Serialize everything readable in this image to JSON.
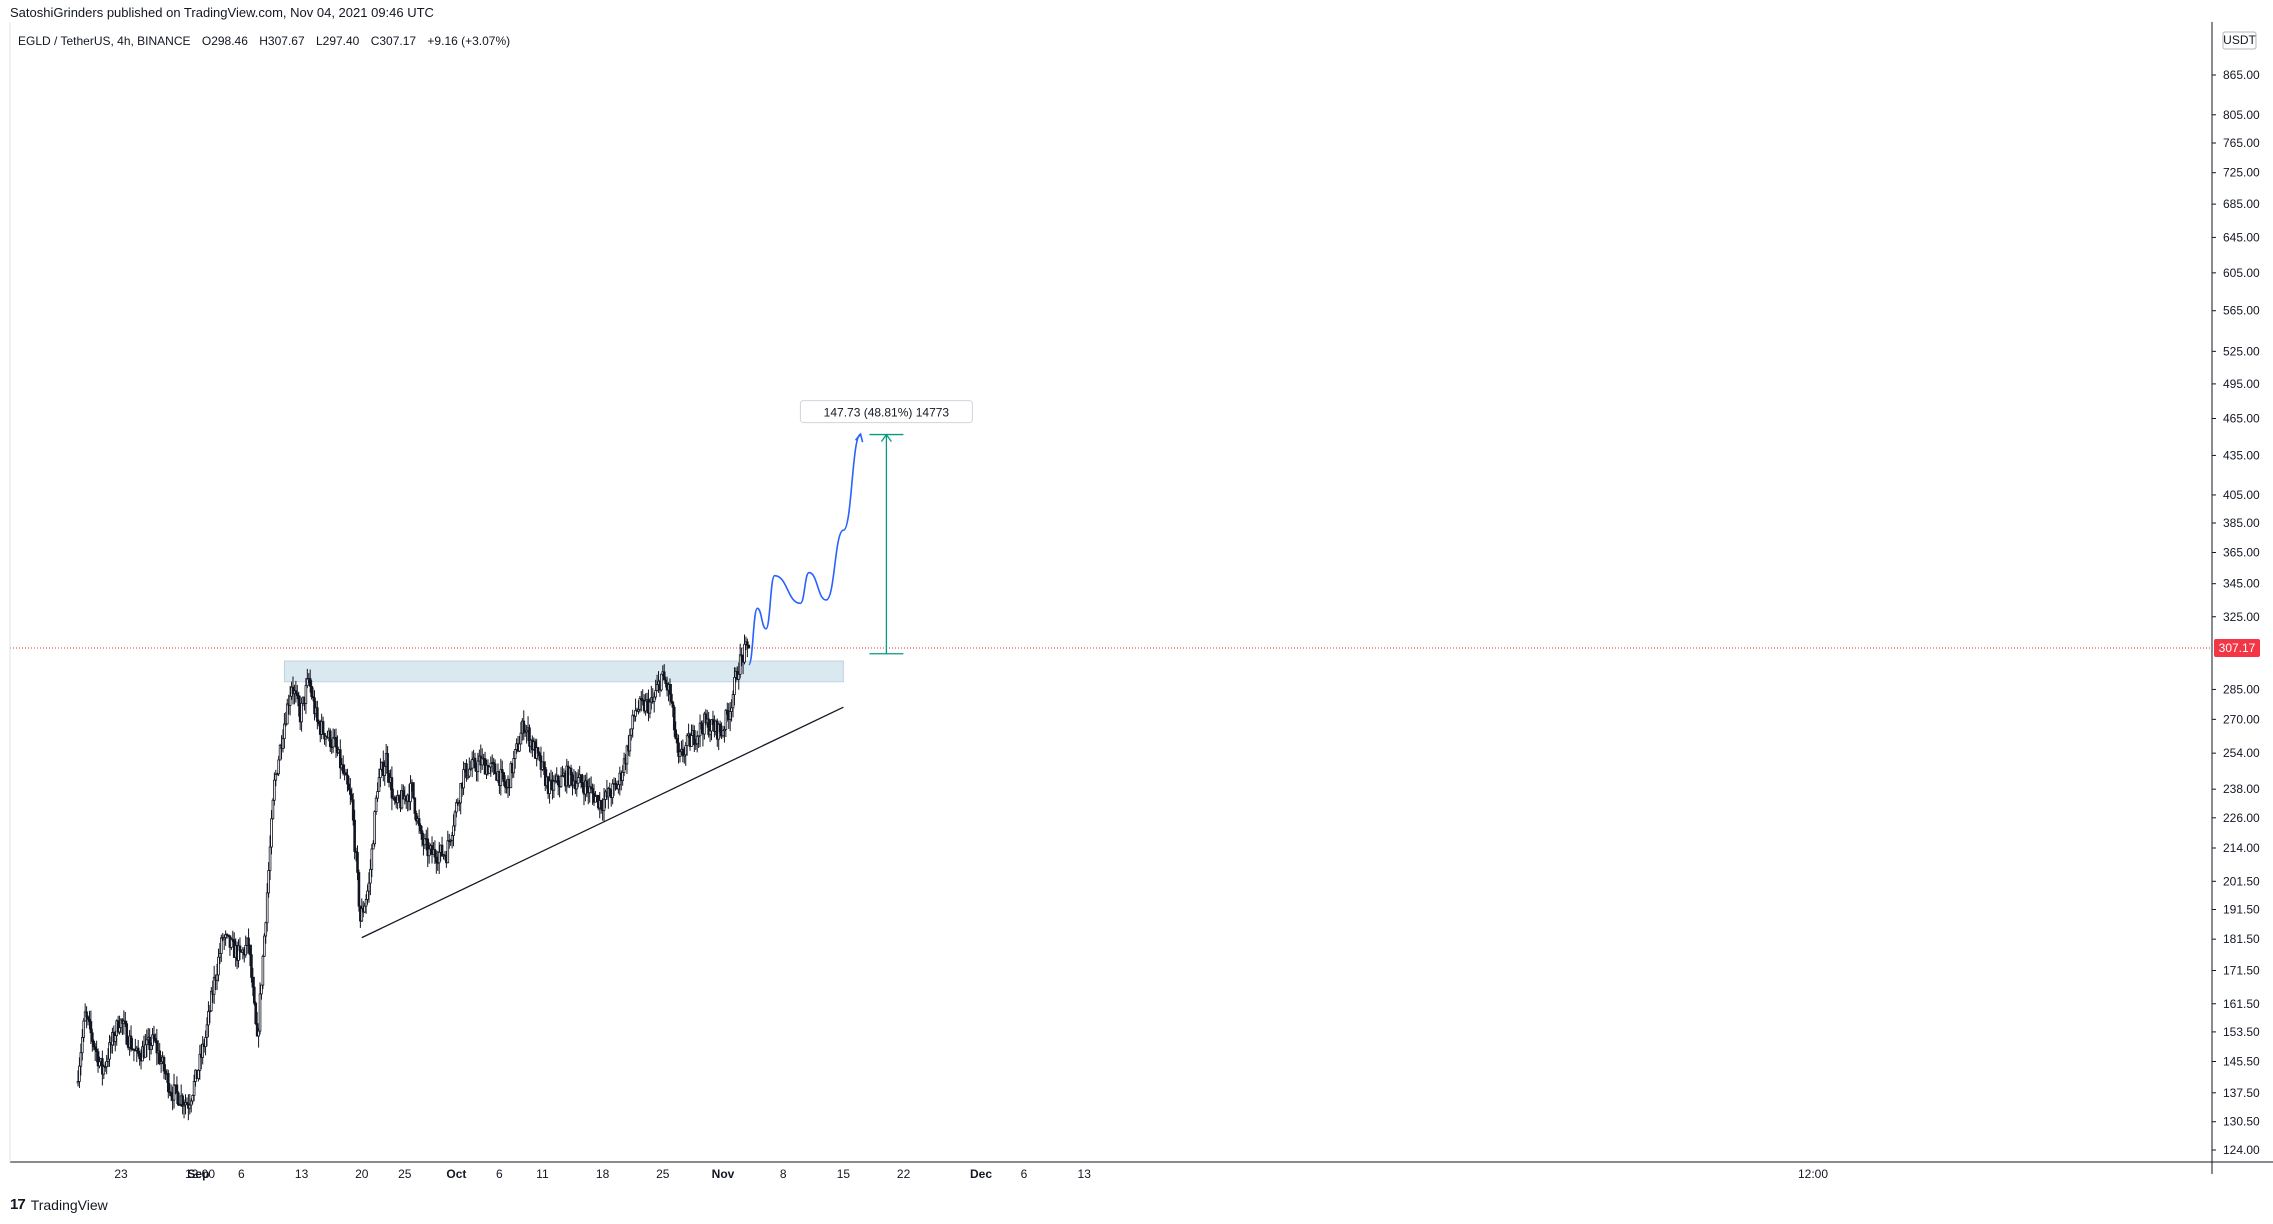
{
  "header": {
    "publish_line": "SatoshiGrinders published on TradingView.com, Nov 04, 2021 09:46 UTC",
    "symbol": "EGLD / TetherUS, 4h, BINANCE",
    "open": "O298.46",
    "high": "H307.67",
    "low": "L297.40",
    "close": "C307.17",
    "change": "+9.16 (+3.07%)"
  },
  "footer": {
    "brand": "TradingView"
  },
  "colors": {
    "background": "#ffffff",
    "candle_up": "#ffffff",
    "candle_down": "#131722",
    "forecast_line": "#2962ff",
    "measure_line": "#089981",
    "price_line": "#f23645",
    "zone_fill": "#d6e6ef",
    "trendline": "#131722"
  },
  "chart_data": {
    "type": "candlestick",
    "symbol": "EGLD / TetherUS",
    "timeframe": "4h",
    "exchange": "BINANCE",
    "y_scale": "log",
    "currency": "USDT",
    "ylim": [
      120,
      950
    ],
    "last_price": "307.17",
    "y_ticks": [
      "865.00",
      "805.00",
      "765.00",
      "725.00",
      "685.00",
      "645.00",
      "605.00",
      "565.00",
      "525.00",
      "495.00",
      "465.00",
      "435.00",
      "405.00",
      "385.00",
      "365.00",
      "345.00",
      "325.00",
      "285.00",
      "270.00",
      "254.00",
      "238.00",
      "226.00",
      "214.00",
      "201.50",
      "191.50",
      "181.50",
      "171.50",
      "161.50",
      "153.50",
      "145.50",
      "137.50",
      "130.50",
      "124.00"
    ],
    "x_ticks": [
      "23",
      "12:00",
      "Sep",
      "6",
      "13",
      "20",
      "25",
      "Oct",
      "6",
      "11",
      "18",
      "25",
      "Nov",
      "8",
      "15",
      "22",
      "12:00",
      "Dec",
      "6",
      "13"
    ],
    "price_path": [
      {
        "date": "2021-08-18",
        "price": 140
      },
      {
        "date": "2021-08-19",
        "price": 158
      },
      {
        "date": "2021-08-21",
        "price": 143
      },
      {
        "date": "2021-08-23",
        "price": 157
      },
      {
        "date": "2021-08-25",
        "price": 147
      },
      {
        "date": "2021-08-27",
        "price": 151
      },
      {
        "date": "2021-08-29",
        "price": 138
      },
      {
        "date": "2021-08-31",
        "price": 135
      },
      {
        "date": "2021-09-01",
        "price": 142
      },
      {
        "date": "2021-09-02",
        "price": 152
      },
      {
        "date": "2021-09-03",
        "price": 168
      },
      {
        "date": "2021-09-04",
        "price": 182
      },
      {
        "date": "2021-09-06",
        "price": 176
      },
      {
        "date": "2021-09-07",
        "price": 180
      },
      {
        "date": "2021-09-08",
        "price": 150
      },
      {
        "date": "2021-09-09",
        "price": 190
      },
      {
        "date": "2021-09-10",
        "price": 240
      },
      {
        "date": "2021-09-11",
        "price": 265
      },
      {
        "date": "2021-09-12",
        "price": 288
      },
      {
        "date": "2021-09-13",
        "price": 272
      },
      {
        "date": "2021-09-14",
        "price": 290
      },
      {
        "date": "2021-09-15",
        "price": 268
      },
      {
        "date": "2021-09-17",
        "price": 258
      },
      {
        "date": "2021-09-19",
        "price": 232
      },
      {
        "date": "2021-09-20",
        "price": 188
      },
      {
        "date": "2021-09-21",
        "price": 200
      },
      {
        "date": "2021-09-22",
        "price": 240
      },
      {
        "date": "2021-09-23",
        "price": 252
      },
      {
        "date": "2021-09-24",
        "price": 230
      },
      {
        "date": "2021-09-26",
        "price": 238
      },
      {
        "date": "2021-09-27",
        "price": 218
      },
      {
        "date": "2021-09-28",
        "price": 212
      },
      {
        "date": "2021-09-30",
        "price": 212
      },
      {
        "date": "2021-10-02",
        "price": 245
      },
      {
        "date": "2021-10-04",
        "price": 250
      },
      {
        "date": "2021-10-06",
        "price": 245
      },
      {
        "date": "2021-10-07",
        "price": 238
      },
      {
        "date": "2021-10-09",
        "price": 268
      },
      {
        "date": "2021-10-10",
        "price": 258
      },
      {
        "date": "2021-10-12",
        "price": 238
      },
      {
        "date": "2021-10-14",
        "price": 244
      },
      {
        "date": "2021-10-16",
        "price": 240
      },
      {
        "date": "2021-10-18",
        "price": 232
      },
      {
        "date": "2021-10-20",
        "price": 240
      },
      {
        "date": "2021-10-21",
        "price": 255
      },
      {
        "date": "2021-10-22",
        "price": 275
      },
      {
        "date": "2021-10-24",
        "price": 278
      },
      {
        "date": "2021-10-25",
        "price": 292
      },
      {
        "date": "2021-10-26",
        "price": 283
      },
      {
        "date": "2021-10-27",
        "price": 250
      },
      {
        "date": "2021-10-28",
        "price": 258
      },
      {
        "date": "2021-10-30",
        "price": 268
      },
      {
        "date": "2021-11-01",
        "price": 264
      },
      {
        "date": "2021-11-02",
        "price": 276
      },
      {
        "date": "2021-11-03",
        "price": 298
      },
      {
        "date": "2021-11-04",
        "price": 307.17
      }
    ],
    "annotations": {
      "resistance_zone": {
        "from_date": "2021-09-11",
        "to_date": "2021-11-15",
        "price_low": 289,
        "price_high": 300
      },
      "ascending_trendline": {
        "start_date": "2021-09-20",
        "start_price": 182,
        "end_date": "2021-11-15",
        "end_price": 276
      },
      "forecast_path": [
        {
          "date": "2021-11-04",
          "price": 298
        },
        {
          "date": "2021-11-05",
          "price": 330
        },
        {
          "date": "2021-11-06",
          "price": 318
        },
        {
          "date": "2021-11-07",
          "price": 350
        },
        {
          "date": "2021-11-10",
          "price": 333
        },
        {
          "date": "2021-11-11",
          "price": 352
        },
        {
          "date": "2021-11-13",
          "price": 335
        },
        {
          "date": "2021-11-15",
          "price": 380
        },
        {
          "date": "2021-11-17",
          "price": 452
        }
      ],
      "measure": {
        "date": "2021-11-20",
        "from_price": 304,
        "to_price": 451.7,
        "label": "147.73 (48.81%) 14773"
      }
    }
  }
}
